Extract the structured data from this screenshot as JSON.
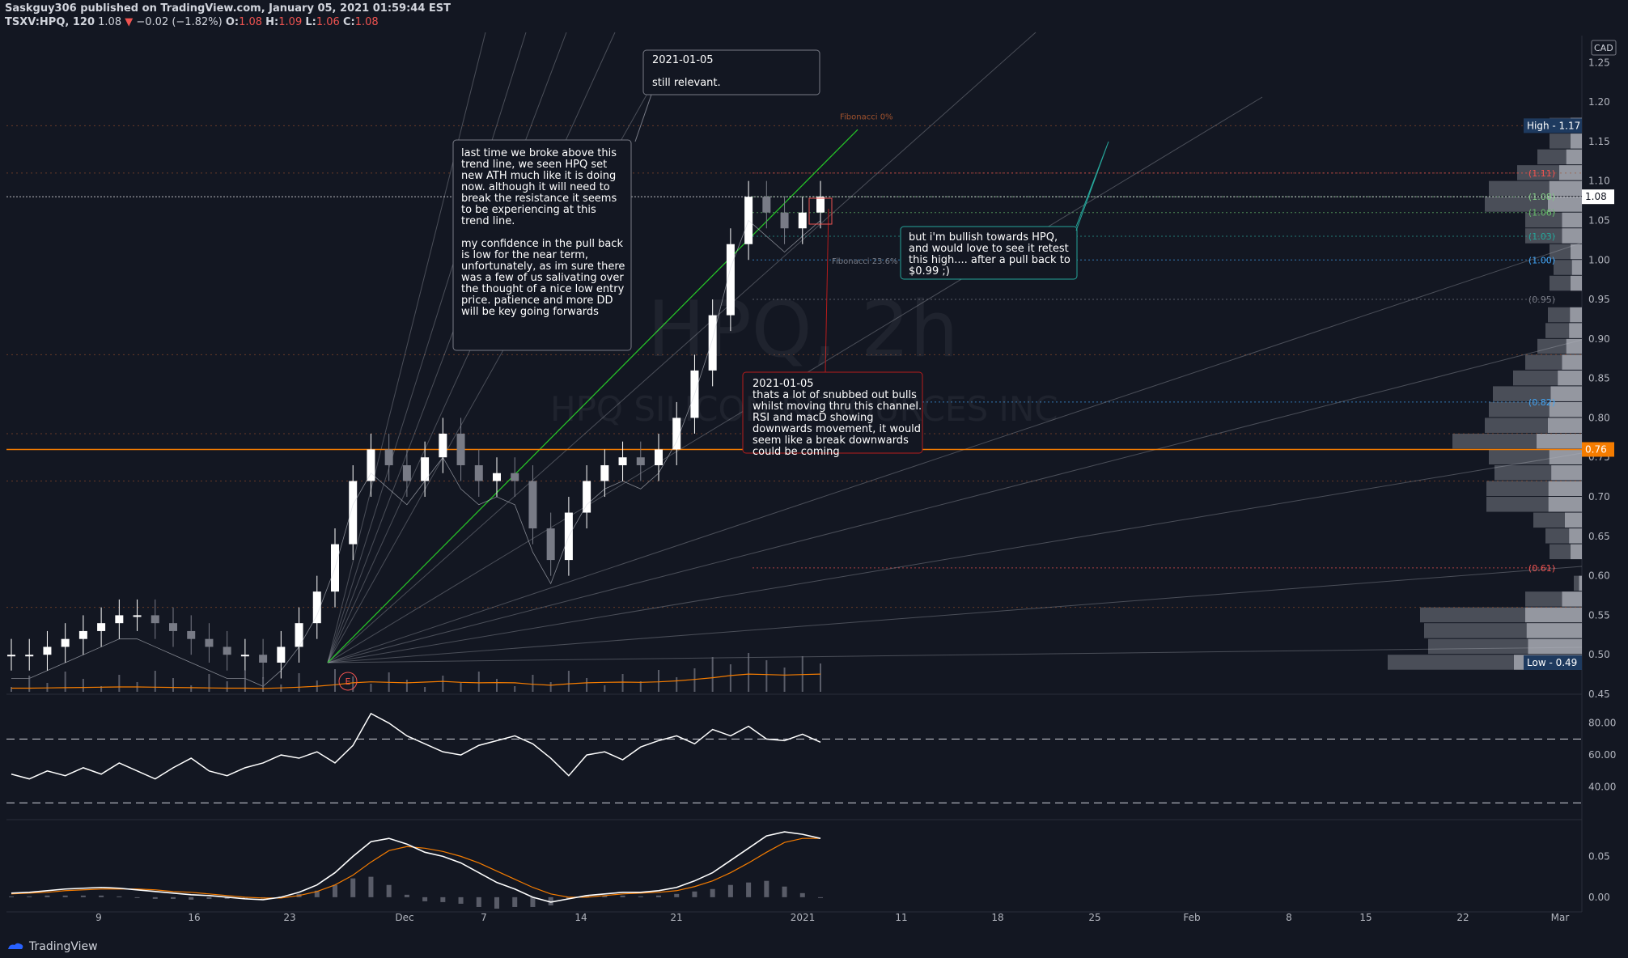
{
  "header": {
    "published": "Saskguy306 published on TradingView.com, January 05, 2021 01:59:44 EST",
    "symbol": "TSXV:HPQ, 120",
    "last": "1.08",
    "change": "−0.02 (−1.82%)",
    "o_label": "O:",
    "o": "1.08",
    "h_label": "H:",
    "h": "1.09",
    "l_label": "L:",
    "l": "1.06",
    "c_label": "C:",
    "c": "1.08"
  },
  "watermark": {
    "symbol": "HPQ, 2h",
    "name": "HPQ SILICON RESOURCES INC"
  },
  "footer": {
    "brand": "TradingView"
  },
  "colors": {
    "bg": "#131722",
    "up": "#ffffff",
    "down": "#787b86",
    "orange": "#f57c00",
    "green": "#26a69a",
    "red": "#ef5350",
    "label_blue": "#1e3a5f"
  },
  "chart_data": {
    "type": "candlestick",
    "currency": "CAD",
    "ylim": [
      0.45,
      1.28
    ],
    "price_ticks": [
      "1.25",
      "1.20",
      "1.15",
      "1.10",
      "1.05",
      "1.00",
      "0.95",
      "0.90",
      "0.85",
      "0.80",
      "0.75",
      "0.70",
      "0.65",
      "0.60",
      "0.55",
      "0.50",
      "0.45"
    ],
    "x_ticks": [
      "9",
      "16",
      "23",
      "Dec",
      "7",
      "14",
      "21",
      "2021",
      "11",
      "18",
      "25",
      "Feb",
      "8",
      "15",
      "22",
      "Mar"
    ],
    "series_close": [
      0.5,
      0.5,
      0.51,
      0.52,
      0.53,
      0.54,
      0.55,
      0.55,
      0.54,
      0.53,
      0.52,
      0.51,
      0.5,
      0.5,
      0.49,
      0.51,
      0.54,
      0.58,
      0.64,
      0.72,
      0.76,
      0.74,
      0.72,
      0.75,
      0.78,
      0.74,
      0.72,
      0.73,
      0.72,
      0.66,
      0.62,
      0.68,
      0.72,
      0.74,
      0.75,
      0.74,
      0.76,
      0.8,
      0.86,
      0.93,
      1.02,
      1.08,
      1.06,
      1.04,
      1.06,
      1.08
    ],
    "price_labels": [
      {
        "text": "High - 1.17",
        "value": 1.17,
        "style": "blue"
      },
      {
        "text": "1.08",
        "value": 1.08,
        "style": "white"
      },
      {
        "text": "0.76",
        "value": 0.76,
        "style": "orange"
      },
      {
        "text": "Low - 0.49",
        "value": 0.49,
        "style": "blue"
      }
    ],
    "fib_levels": [
      {
        "text": "(1.11)",
        "value": 1.11,
        "color": "#ef5350"
      },
      {
        "text": "(1.08)",
        "value": 1.08,
        "color": "#81c784"
      },
      {
        "text": "(1.06)",
        "value": 1.06,
        "color": "#66bb6a"
      },
      {
        "text": "(1.03)",
        "value": 1.03,
        "color": "#26a69a"
      },
      {
        "text": "(1.00)",
        "value": 1.0,
        "color": "#42a5f5"
      },
      {
        "text": "(0.95)",
        "value": 0.95,
        "color": "#787b86"
      },
      {
        "text": "(0.82)",
        "value": 0.82,
        "color": "#42a5f5"
      },
      {
        "text": "(0.61)",
        "value": 0.61,
        "color": "#ef5350"
      }
    ],
    "fib_label": "Fibonacci 0%",
    "fib_label2": "Fibonacci 23.6%",
    "earnings_marker": "E",
    "rsi": {
      "ticks": [
        "80.00",
        "60.00",
        "40.00"
      ],
      "upper": 70,
      "lower": 30,
      "ylim": [
        22,
        92
      ],
      "values": [
        48,
        45,
        50,
        47,
        52,
        48,
        55,
        50,
        45,
        52,
        58,
        50,
        47,
        52,
        55,
        60,
        58,
        62,
        55,
        66,
        86,
        80,
        72,
        67,
        62,
        60,
        66,
        69,
        72,
        67,
        58,
        47,
        60,
        62,
        57,
        65,
        69,
        72,
        67,
        76,
        72,
        78,
        70,
        69,
        73,
        68
      ]
    },
    "macd": {
      "ticks": [
        "0.05",
        "0.00"
      ],
      "ylim": [
        -0.015,
        0.09
      ],
      "macd": [
        0.005,
        0.006,
        0.008,
        0.01,
        0.011,
        0.012,
        0.011,
        0.009,
        0.007,
        0.005,
        0.003,
        0.002,
        0.0,
        -0.002,
        -0.003,
        0.0,
        0.006,
        0.015,
        0.03,
        0.05,
        0.068,
        0.072,
        0.065,
        0.055,
        0.05,
        0.042,
        0.03,
        0.018,
        0.01,
        0.0,
        -0.006,
        -0.002,
        0.002,
        0.004,
        0.006,
        0.006,
        0.008,
        0.012,
        0.02,
        0.03,
        0.045,
        0.06,
        0.075,
        0.08,
        0.077,
        0.072
      ],
      "signal": [
        0.004,
        0.005,
        0.006,
        0.008,
        0.009,
        0.01,
        0.01,
        0.01,
        0.009,
        0.007,
        0.006,
        0.004,
        0.002,
        0.0,
        -0.001,
        -0.001,
        0.002,
        0.007,
        0.015,
        0.027,
        0.043,
        0.057,
        0.062,
        0.06,
        0.056,
        0.05,
        0.042,
        0.032,
        0.022,
        0.012,
        0.004,
        0.0,
        0.0,
        0.002,
        0.004,
        0.005,
        0.006,
        0.008,
        0.013,
        0.02,
        0.03,
        0.042,
        0.055,
        0.067,
        0.072,
        0.072
      ]
    }
  },
  "notes": [
    {
      "text": "2021-01-05\n\nstill relevant."
    },
    {
      "text": "last time we broke above this trend line, we seen HPQ set new ATH much like it is doing now. although it will need to break the resistance it seems to be experiencing at this trend line.\n\nmy confidence in the pull back is low for the near term, unfortunately, as im sure there was a few of us salivating over the thought of a nice low entry price. patience and more DD will be key going forwards"
    },
    {
      "text": "but i'm bullish towards HPQ, and would love to see it retest this high.... after a pull back to $0.99 ;)"
    },
    {
      "text": "2021-01-05\nthats a lot of snubbed out bulls whilst moving thru this channel. RSI and macD showing downwards movement, it would seem like a break downwards could be coming"
    }
  ]
}
